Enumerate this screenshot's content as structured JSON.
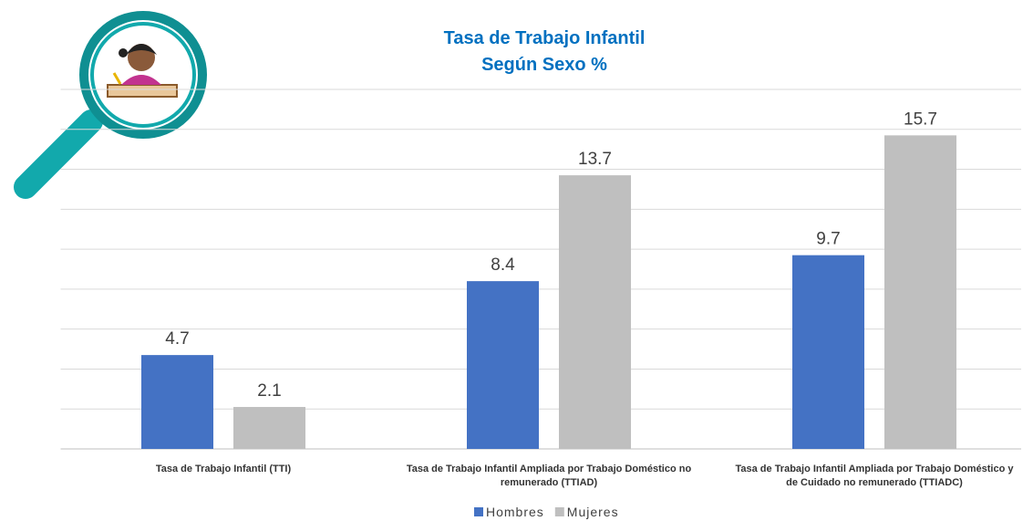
{
  "chart_data": {
    "type": "bar",
    "title": "Tasa de Trabajo Infantil",
    "subtitle": "Según Sexo %",
    "categories": [
      "Tasa de Trabajo Infantil (TTI)",
      "Tasa de Trabajo Infantil Ampliada por Trabajo Doméstico no remunerado (TTIAD)",
      "Tasa de Trabajo Infantil Ampliada por Trabajo Doméstico y de Cuidado no remunerado (TTIADC)"
    ],
    "series": [
      {
        "name": "Hombres",
        "color": "#4472c4",
        "values": [
          4.7,
          8.4,
          9.7
        ]
      },
      {
        "name": "Mujeres",
        "color": "#bfbfbf",
        "values": [
          2.1,
          13.7,
          15.7
        ]
      }
    ],
    "ylim": [
      0,
      18
    ],
    "yticks": [
      0,
      2,
      4,
      6,
      8,
      10,
      12,
      14,
      16,
      18
    ],
    "grid": true,
    "show_ytick_labels": false,
    "legend": "bottom"
  }
}
